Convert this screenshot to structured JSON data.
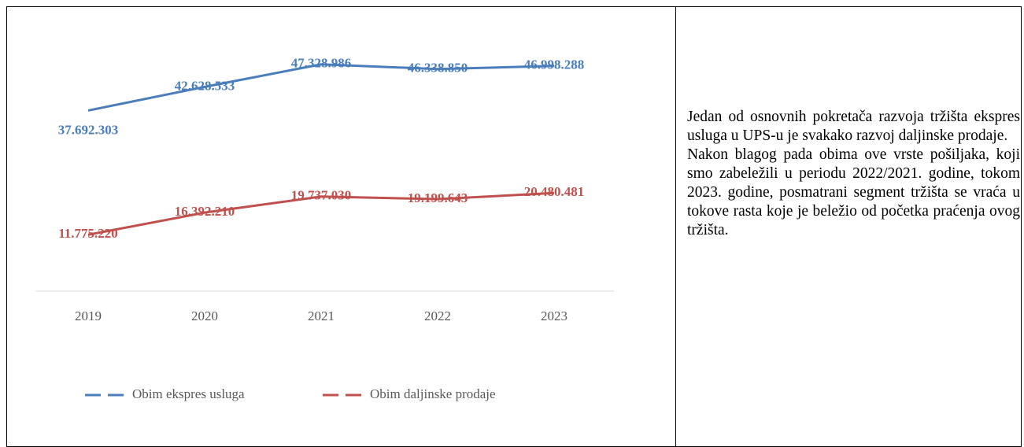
{
  "chart_data": {
    "type": "line",
    "categories": [
      "2019",
      "2020",
      "2021",
      "2022",
      "2023"
    ],
    "series": [
      {
        "name": "Obim ekspres usluga",
        "color": "#4a7ebb",
        "values": [
          37692303,
          42628533,
          47328986,
          46338850,
          46998288
        ],
        "value_labels": [
          "37.692.303",
          "42.628.533",
          "47.328.986",
          "46.338.850",
          "46.998.288"
        ]
      },
      {
        "name": "Obim daljinske prodaje",
        "color": "#c0504d",
        "values": [
          11775220,
          16392210,
          19737030,
          19199643,
          20480481
        ],
        "value_labels": [
          "11.775.220",
          "16.392.210",
          "19.737.030",
          "19.199.643",
          "20.480.481"
        ]
      }
    ],
    "ylim": [
      0,
      55000000
    ]
  },
  "text": {
    "paragraphs": [
      "Jedan od osnovnih pokretača razvoja tržišta ekspres usluga u UPS-u je svakako razvoj daljinske prodaje.",
      "Nakon blagog pada obima ove vrste pošiljaka, koji smo zabeležili u periodu 2022/2021. godine, tokom 2023. godine,  posmatrani segment tržišta se vraća u tokove rasta koje je beležio od početka praćenja ovog tržišta."
    ]
  }
}
